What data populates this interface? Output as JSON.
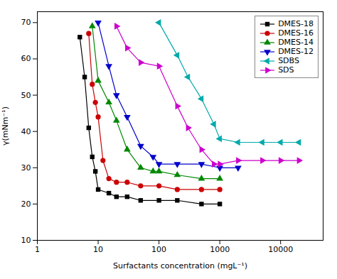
{
  "chart_data": {
    "type": "line",
    "xlabel": "Surfactants concentration (mgL⁻¹)",
    "ylabel": "γ(mNm⁻¹)",
    "log": "x",
    "xlim": [
      1,
      50000
    ],
    "xticks": [
      1,
      10,
      100,
      1000,
      10000
    ],
    "ylim": [
      10,
      73
    ],
    "yticks": [
      10,
      20,
      30,
      40,
      50,
      60,
      70
    ],
    "grid": false,
    "legend": "upper right",
    "series": [
      {
        "name": "DMES-18",
        "color": "#000000",
        "marker": "square",
        "x": [
          5,
          6,
          7,
          8,
          9,
          10,
          15,
          20,
          30,
          50,
          100,
          200,
          500,
          1000
        ],
        "values": [
          66,
          55,
          41,
          33,
          29,
          24,
          23,
          22,
          22,
          21,
          21,
          21,
          20,
          20
        ]
      },
      {
        "name": "DMES-16",
        "color": "#cc0000",
        "marker": "circle",
        "x": [
          7,
          8,
          9,
          10,
          12,
          15,
          20,
          30,
          50,
          100,
          200,
          500,
          1000
        ],
        "values": [
          67,
          53,
          48,
          44,
          32,
          27,
          26,
          26,
          25,
          25,
          24,
          24,
          24
        ]
      },
      {
        "name": "DMES-14",
        "color": "#008800",
        "marker": "triangle-up",
        "x": [
          8,
          10,
          15,
          20,
          30,
          50,
          80,
          100,
          200,
          500,
          1000
        ],
        "values": [
          69,
          54,
          48,
          43,
          35,
          30,
          29,
          29,
          28,
          27,
          27
        ]
      },
      {
        "name": "DMES-12",
        "color": "#0000cc",
        "marker": "triangle-down",
        "x": [
          10,
          15,
          20,
          30,
          50,
          80,
          100,
          200,
          500,
          1000,
          2000
        ],
        "values": [
          70,
          58,
          50,
          44,
          36,
          33,
          31,
          31,
          31,
          30,
          30
        ]
      },
      {
        "name": "SDBS",
        "color": "#00aaaa",
        "marker": "triangle-left",
        "x": [
          100,
          200,
          300,
          500,
          800,
          1000,
          2000,
          5000,
          10000,
          20000
        ],
        "values": [
          70,
          61,
          55,
          49,
          42,
          38,
          37,
          37,
          37,
          37
        ]
      },
      {
        "name": "SDS",
        "color": "#cc00cc",
        "marker": "triangle-right",
        "x": [
          20,
          30,
          50,
          100,
          200,
          300,
          500,
          800,
          1000,
          2000,
          5000,
          10000,
          20000
        ],
        "values": [
          69,
          63,
          59,
          58,
          47,
          41,
          35,
          31,
          31,
          32,
          32,
          32,
          32
        ]
      }
    ]
  }
}
